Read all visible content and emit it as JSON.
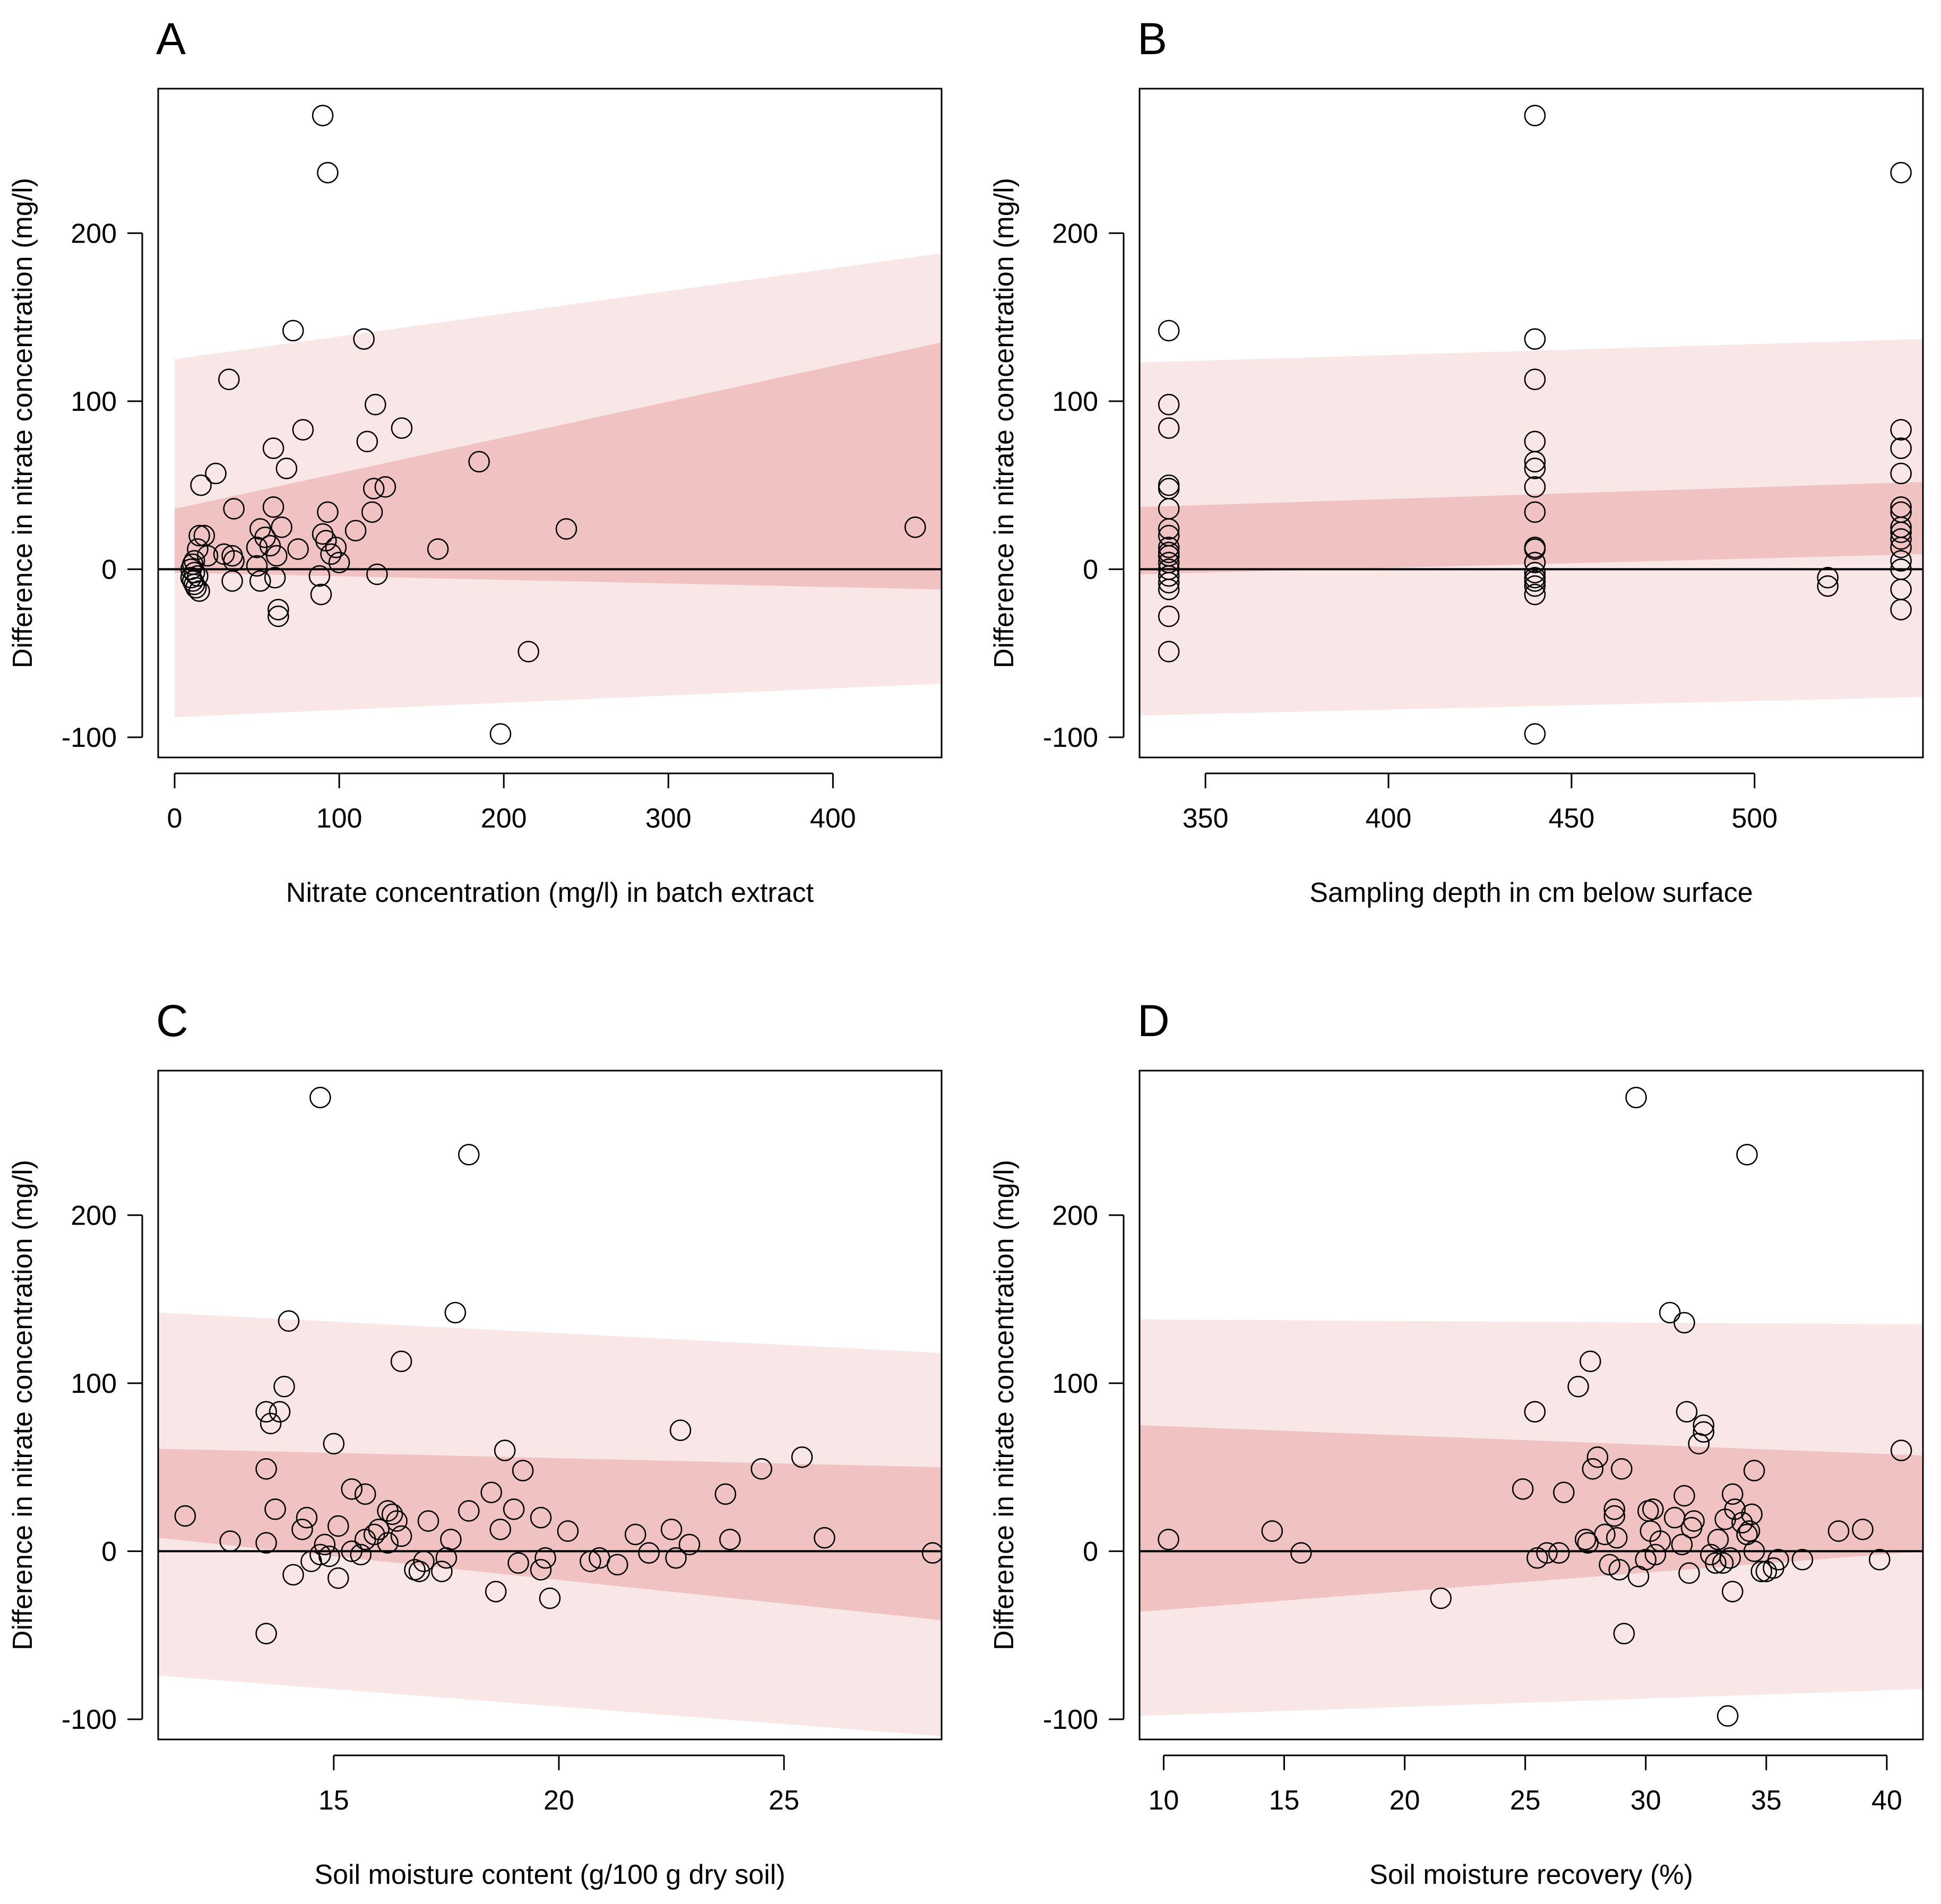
{
  "chart_data": [
    {
      "type": "scatter",
      "panel_letter": "A",
      "xlabel": "Nitrate concentration (mg/l) in batch extract",
      "ylabel": "Difference in nitrate concentration (mg/l)",
      "xlim": [
        -10,
        466
      ],
      "ylim": [
        -112,
        286
      ],
      "xticks": [
        0,
        100,
        200,
        300,
        400
      ],
      "yticks": [
        -100,
        0,
        100,
        200
      ],
      "bands": {
        "x": [
          0,
          466
        ],
        "outer_upper": [
          125,
          188
        ],
        "outer_lower": [
          -88,
          -68
        ],
        "inner_upper": [
          36,
          135
        ],
        "inner_lower": [
          -2,
          -12
        ]
      },
      "points": [
        [
          10,
          -5
        ],
        [
          11,
          -7
        ],
        [
          12,
          -9
        ],
        [
          13,
          -11
        ],
        [
          14,
          -4
        ],
        [
          12,
          -2
        ],
        [
          10,
          0
        ],
        [
          11,
          3
        ],
        [
          12,
          5
        ],
        [
          14,
          12
        ],
        [
          15,
          -13
        ],
        [
          15,
          20
        ],
        [
          16,
          50
        ],
        [
          18,
          20
        ],
        [
          20,
          8
        ],
        [
          25,
          57
        ],
        [
          30,
          9
        ],
        [
          33,
          113
        ],
        [
          35,
          -7
        ],
        [
          35,
          8
        ],
        [
          36,
          5
        ],
        [
          36,
          36
        ],
        [
          50,
          2
        ],
        [
          50,
          13
        ],
        [
          52,
          -7
        ],
        [
          52,
          24
        ],
        [
          55,
          19
        ],
        [
          58,
          14
        ],
        [
          60,
          72
        ],
        [
          60,
          37
        ],
        [
          61,
          -5
        ],
        [
          62,
          8
        ],
        [
          63,
          -24
        ],
        [
          63,
          -28
        ],
        [
          65,
          25
        ],
        [
          68,
          60
        ],
        [
          72,
          142
        ],
        [
          75,
          12
        ],
        [
          78,
          83
        ],
        [
          88,
          -4
        ],
        [
          89,
          -15
        ],
        [
          90,
          270
        ],
        [
          90,
          21
        ],
        [
          92,
          17
        ],
        [
          93,
          236
        ],
        [
          93,
          34
        ],
        [
          95,
          9
        ],
        [
          98,
          13
        ],
        [
          100,
          4
        ],
        [
          110,
          23
        ],
        [
          115,
          137
        ],
        [
          117,
          76
        ],
        [
          120,
          34
        ],
        [
          121,
          48
        ],
        [
          122,
          98
        ],
        [
          123,
          -3
        ],
        [
          128,
          49
        ],
        [
          138,
          84
        ],
        [
          160,
          12
        ],
        [
          185,
          64
        ],
        [
          198,
          -98
        ],
        [
          215,
          -49
        ],
        [
          238,
          24
        ],
        [
          450,
          25
        ]
      ]
    },
    {
      "type": "scatter",
      "panel_letter": "B",
      "xlabel": "Sampling depth in cm below surface",
      "ylabel": "Difference in nitrate concentration (mg/l)",
      "xlim": [
        332,
        546
      ],
      "ylim": [
        -112,
        286
      ],
      "xticks": [
        350,
        400,
        450,
        500
      ],
      "yticks": [
        -100,
        0,
        100,
        200
      ],
      "bands": {
        "x": [
          332,
          546
        ],
        "outer_upper": [
          123,
          137
        ],
        "outer_lower": [
          -87,
          -76
        ],
        "inner_upper": [
          37,
          52
        ],
        "inner_lower": [
          -3,
          9
        ]
      },
      "points": [
        [
          340,
          142
        ],
        [
          340,
          98
        ],
        [
          340,
          84
        ],
        [
          340,
          50
        ],
        [
          340,
          48
        ],
        [
          340,
          36
        ],
        [
          340,
          24
        ],
        [
          340,
          20
        ],
        [
          340,
          13
        ],
        [
          340,
          10
        ],
        [
          340,
          8
        ],
        [
          340,
          4
        ],
        [
          340,
          0
        ],
        [
          340,
          -4
        ],
        [
          340,
          -8
        ],
        [
          340,
          -12
        ],
        [
          340,
          -28
        ],
        [
          340,
          -49
        ],
        [
          440,
          270
        ],
        [
          440,
          137
        ],
        [
          440,
          113
        ],
        [
          440,
          76
        ],
        [
          440,
          64
        ],
        [
          440,
          60
        ],
        [
          440,
          49
        ],
        [
          440,
          34
        ],
        [
          440,
          13
        ],
        [
          440,
          12
        ],
        [
          440,
          4
        ],
        [
          440,
          -2
        ],
        [
          440,
          -5
        ],
        [
          440,
          -7
        ],
        [
          440,
          -10
        ],
        [
          440,
          -15
        ],
        [
          440,
          -98
        ],
        [
          520,
          -5
        ],
        [
          520,
          -10
        ],
        [
          540,
          236
        ],
        [
          540,
          83
        ],
        [
          540,
          72
        ],
        [
          540,
          57
        ],
        [
          540,
          37
        ],
        [
          540,
          34
        ],
        [
          540,
          25
        ],
        [
          540,
          22
        ],
        [
          540,
          18
        ],
        [
          540,
          13
        ],
        [
          540,
          5
        ],
        [
          540,
          0
        ],
        [
          540,
          -12
        ],
        [
          540,
          -24
        ]
      ]
    },
    {
      "type": "scatter",
      "panel_letter": "C",
      "xlabel": "Soil moisture content (g/100 g dry soil)",
      "ylabel": "Difference in nitrate concentration (mg/l)",
      "xlim": [
        11.1,
        28.5
      ],
      "ylim": [
        -112,
        286
      ],
      "xticks": [
        15,
        20,
        25
      ],
      "yticks": [
        -100,
        0,
        100,
        200
      ],
      "bands": {
        "x": [
          11.1,
          28.5
        ],
        "outer_upper": [
          142,
          118
        ],
        "outer_lower": [
          -74,
          -110
        ],
        "inner_upper": [
          61,
          50
        ],
        "inner_lower": [
          8,
          -41
        ]
      },
      "points": [
        [
          11.7,
          21
        ],
        [
          12.7,
          6
        ],
        [
          13.5,
          -49
        ],
        [
          13.5,
          5
        ],
        [
          13.5,
          49
        ],
        [
          13.5,
          83
        ],
        [
          13.6,
          76
        ],
        [
          13.7,
          25
        ],
        [
          13.8,
          83
        ],
        [
          13.9,
          98
        ],
        [
          14.0,
          137
        ],
        [
          14.1,
          -14
        ],
        [
          14.3,
          13
        ],
        [
          14.4,
          20
        ],
        [
          14.5,
          -6
        ],
        [
          14.7,
          -2
        ],
        [
          14.7,
          270
        ],
        [
          14.8,
          4
        ],
        [
          14.9,
          -3
        ],
        [
          15.0,
          64
        ],
        [
          15.1,
          -16
        ],
        [
          15.1,
          15
        ],
        [
          15.4,
          0
        ],
        [
          15.4,
          37
        ],
        [
          15.6,
          -2
        ],
        [
          15.7,
          7
        ],
        [
          15.7,
          34
        ],
        [
          15.9,
          10
        ],
        [
          16.0,
          13
        ],
        [
          16.2,
          5
        ],
        [
          16.2,
          24
        ],
        [
          16.3,
          22
        ],
        [
          16.4,
          18
        ],
        [
          16.5,
          9
        ],
        [
          16.5,
          113
        ],
        [
          16.8,
          -11
        ],
        [
          16.9,
          -12
        ],
        [
          17.0,
          -6
        ],
        [
          17.1,
          18
        ],
        [
          17.4,
          -12
        ],
        [
          17.5,
          -4
        ],
        [
          17.6,
          7
        ],
        [
          17.7,
          142
        ],
        [
          18.0,
          24
        ],
        [
          18.0,
          236
        ],
        [
          18.5,
          35
        ],
        [
          18.6,
          -24
        ],
        [
          18.7,
          13
        ],
        [
          18.8,
          60
        ],
        [
          19.0,
          25
        ],
        [
          19.1,
          -7
        ],
        [
          19.2,
          48
        ],
        [
          19.6,
          20
        ],
        [
          19.6,
          -11
        ],
        [
          19.7,
          -4
        ],
        [
          19.8,
          -28
        ],
        [
          20.2,
          12
        ],
        [
          20.7,
          -6
        ],
        [
          20.9,
          -4
        ],
        [
          21.3,
          -8
        ],
        [
          21.7,
          10
        ],
        [
          22.0,
          -1
        ],
        [
          22.5,
          13
        ],
        [
          22.6,
          -4
        ],
        [
          22.7,
          72
        ],
        [
          22.9,
          4
        ],
        [
          23.7,
          34
        ],
        [
          23.8,
          7
        ],
        [
          24.5,
          49
        ],
        [
          25.4,
          56
        ],
        [
          25.9,
          8
        ],
        [
          28.3,
          -1
        ]
      ]
    },
    {
      "type": "scatter",
      "panel_letter": "D",
      "xlabel": "Soil moisture recovery (%)",
      "ylabel": "Difference in nitrate concentration (mg/l)",
      "xlim": [
        9.0,
        41.5
      ],
      "ylim": [
        -112,
        286
      ],
      "xticks": [
        10,
        15,
        20,
        25,
        30,
        35,
        40
      ],
      "yticks": [
        -100,
        0,
        100,
        200
      ],
      "bands": {
        "x": [
          9.0,
          41.5
        ],
        "outer_upper": [
          138,
          135
        ],
        "outer_lower": [
          -98,
          -82
        ],
        "inner_upper": [
          75,
          57
        ],
        "inner_lower": [
          -36,
          0
        ]
      },
      "points": [
        [
          10.2,
          7
        ],
        [
          14.5,
          12
        ],
        [
          15.7,
          -1
        ],
        [
          21.5,
          -28
        ],
        [
          24.9,
          37
        ],
        [
          25.4,
          83
        ],
        [
          25.5,
          -4
        ],
        [
          25.9,
          -1
        ],
        [
          26.4,
          -1
        ],
        [
          26.6,
          35
        ],
        [
          27.2,
          98
        ],
        [
          27.5,
          7
        ],
        [
          27.6,
          5
        ],
        [
          27.7,
          113
        ],
        [
          27.8,
          49
        ],
        [
          28.0,
          56
        ],
        [
          28.3,
          10
        ],
        [
          28.5,
          -8
        ],
        [
          28.7,
          21
        ],
        [
          28.7,
          25
        ],
        [
          28.8,
          8
        ],
        [
          28.9,
          -11
        ],
        [
          29.0,
          49
        ],
        [
          29.1,
          -49
        ],
        [
          29.6,
          270
        ],
        [
          29.7,
          -15
        ],
        [
          30.0,
          -5
        ],
        [
          30.1,
          24
        ],
        [
          30.2,
          12
        ],
        [
          30.3,
          25
        ],
        [
          30.4,
          -2
        ],
        [
          30.6,
          6
        ],
        [
          31.0,
          142
        ],
        [
          31.2,
          20
        ],
        [
          31.5,
          4
        ],
        [
          31.6,
          136
        ],
        [
          31.6,
          33
        ],
        [
          31.7,
          83
        ],
        [
          31.8,
          -13
        ],
        [
          31.9,
          14
        ],
        [
          32.0,
          18
        ],
        [
          32.2,
          64
        ],
        [
          32.4,
          75
        ],
        [
          32.4,
          71
        ],
        [
          32.7,
          -2
        ],
        [
          32.9,
          -7
        ],
        [
          33.0,
          7
        ],
        [
          33.2,
          -7
        ],
        [
          33.3,
          19
        ],
        [
          33.4,
          -98
        ],
        [
          33.5,
          -4
        ],
        [
          33.6,
          34
        ],
        [
          33.6,
          -24
        ],
        [
          33.7,
          25
        ],
        [
          34.0,
          17
        ],
        [
          34.2,
          236
        ],
        [
          34.2,
          10
        ],
        [
          34.3,
          12
        ],
        [
          34.4,
          22
        ],
        [
          34.5,
          48
        ],
        [
          34.5,
          0
        ],
        [
          34.8,
          -12
        ],
        [
          35.0,
          -12
        ],
        [
          35.3,
          -10
        ],
        [
          35.5,
          -5
        ],
        [
          36.5,
          -5
        ],
        [
          38.0,
          12
        ],
        [
          39.0,
          13
        ],
        [
          39.7,
          -5
        ],
        [
          40.6,
          60
        ]
      ]
    }
  ]
}
